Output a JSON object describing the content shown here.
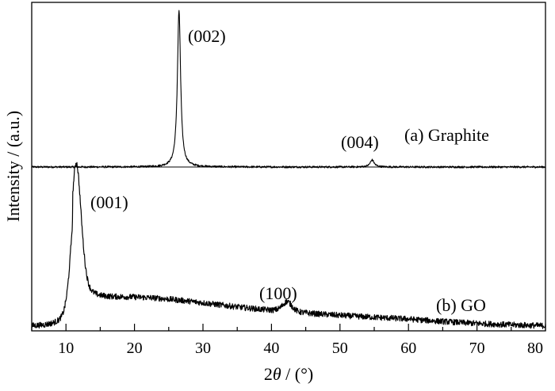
{
  "chart_data": {
    "type": "line",
    "title": "",
    "xlabel": {
      "prefix": "2",
      "symbol": "θ",
      "suffix": " / (°)"
    },
    "ylabel": "Intensity / (a.u.)",
    "xlim": [
      5,
      80
    ],
    "ylim_note": "arbitrary units, offset curves",
    "x_ticks": [
      10,
      20,
      30,
      40,
      50,
      60,
      70,
      80
    ],
    "x_tick_labels": [
      "10",
      "20",
      "30",
      "40",
      "50",
      "60",
      "70",
      "80"
    ],
    "y_ticks": [],
    "grid": false,
    "legend": "none (series labelled inline)",
    "series": [
      {
        "name": "(a) Graphite",
        "color": "#000000",
        "baseline": 1.0,
        "peaks": [
          {
            "center": 26.5,
            "height": 1.0,
            "width": 0.28
          },
          {
            "center": 54.7,
            "height": 0.045,
            "width": 0.35
          }
        ],
        "noise": 0.006
      },
      {
        "name": "(b) GO",
        "color": "#000000",
        "baseline": 0.0,
        "peaks": [
          {
            "center": 11.5,
            "height": 0.95,
            "width": 0.75
          },
          {
            "center": 42.3,
            "height": 0.07,
            "width": 0.7
          }
        ],
        "broad_background": [
          {
            "center": 17,
            "amplitude": 0.15,
            "width": 13
          },
          {
            "center": 40,
            "amplitude": 0.08,
            "width": 22
          }
        ],
        "noise": 0.02
      }
    ],
    "annotations": [
      {
        "text": "(002)",
        "x": 30.4,
        "y_ref": "graphite-peak-002"
      },
      {
        "text": "(004)",
        "x": 54.5,
        "y_ref": "graphite-peak-004"
      },
      {
        "text": "(001)",
        "x": 17.3,
        "y_ref": "go-peak-001"
      },
      {
        "text": "(100)",
        "x": 42.0,
        "y_ref": "go-peak-100"
      }
    ],
    "series_labels": [
      {
        "text": "(a) Graphite",
        "series": 0
      },
      {
        "text": "(b) GO",
        "series": 1
      }
    ]
  }
}
